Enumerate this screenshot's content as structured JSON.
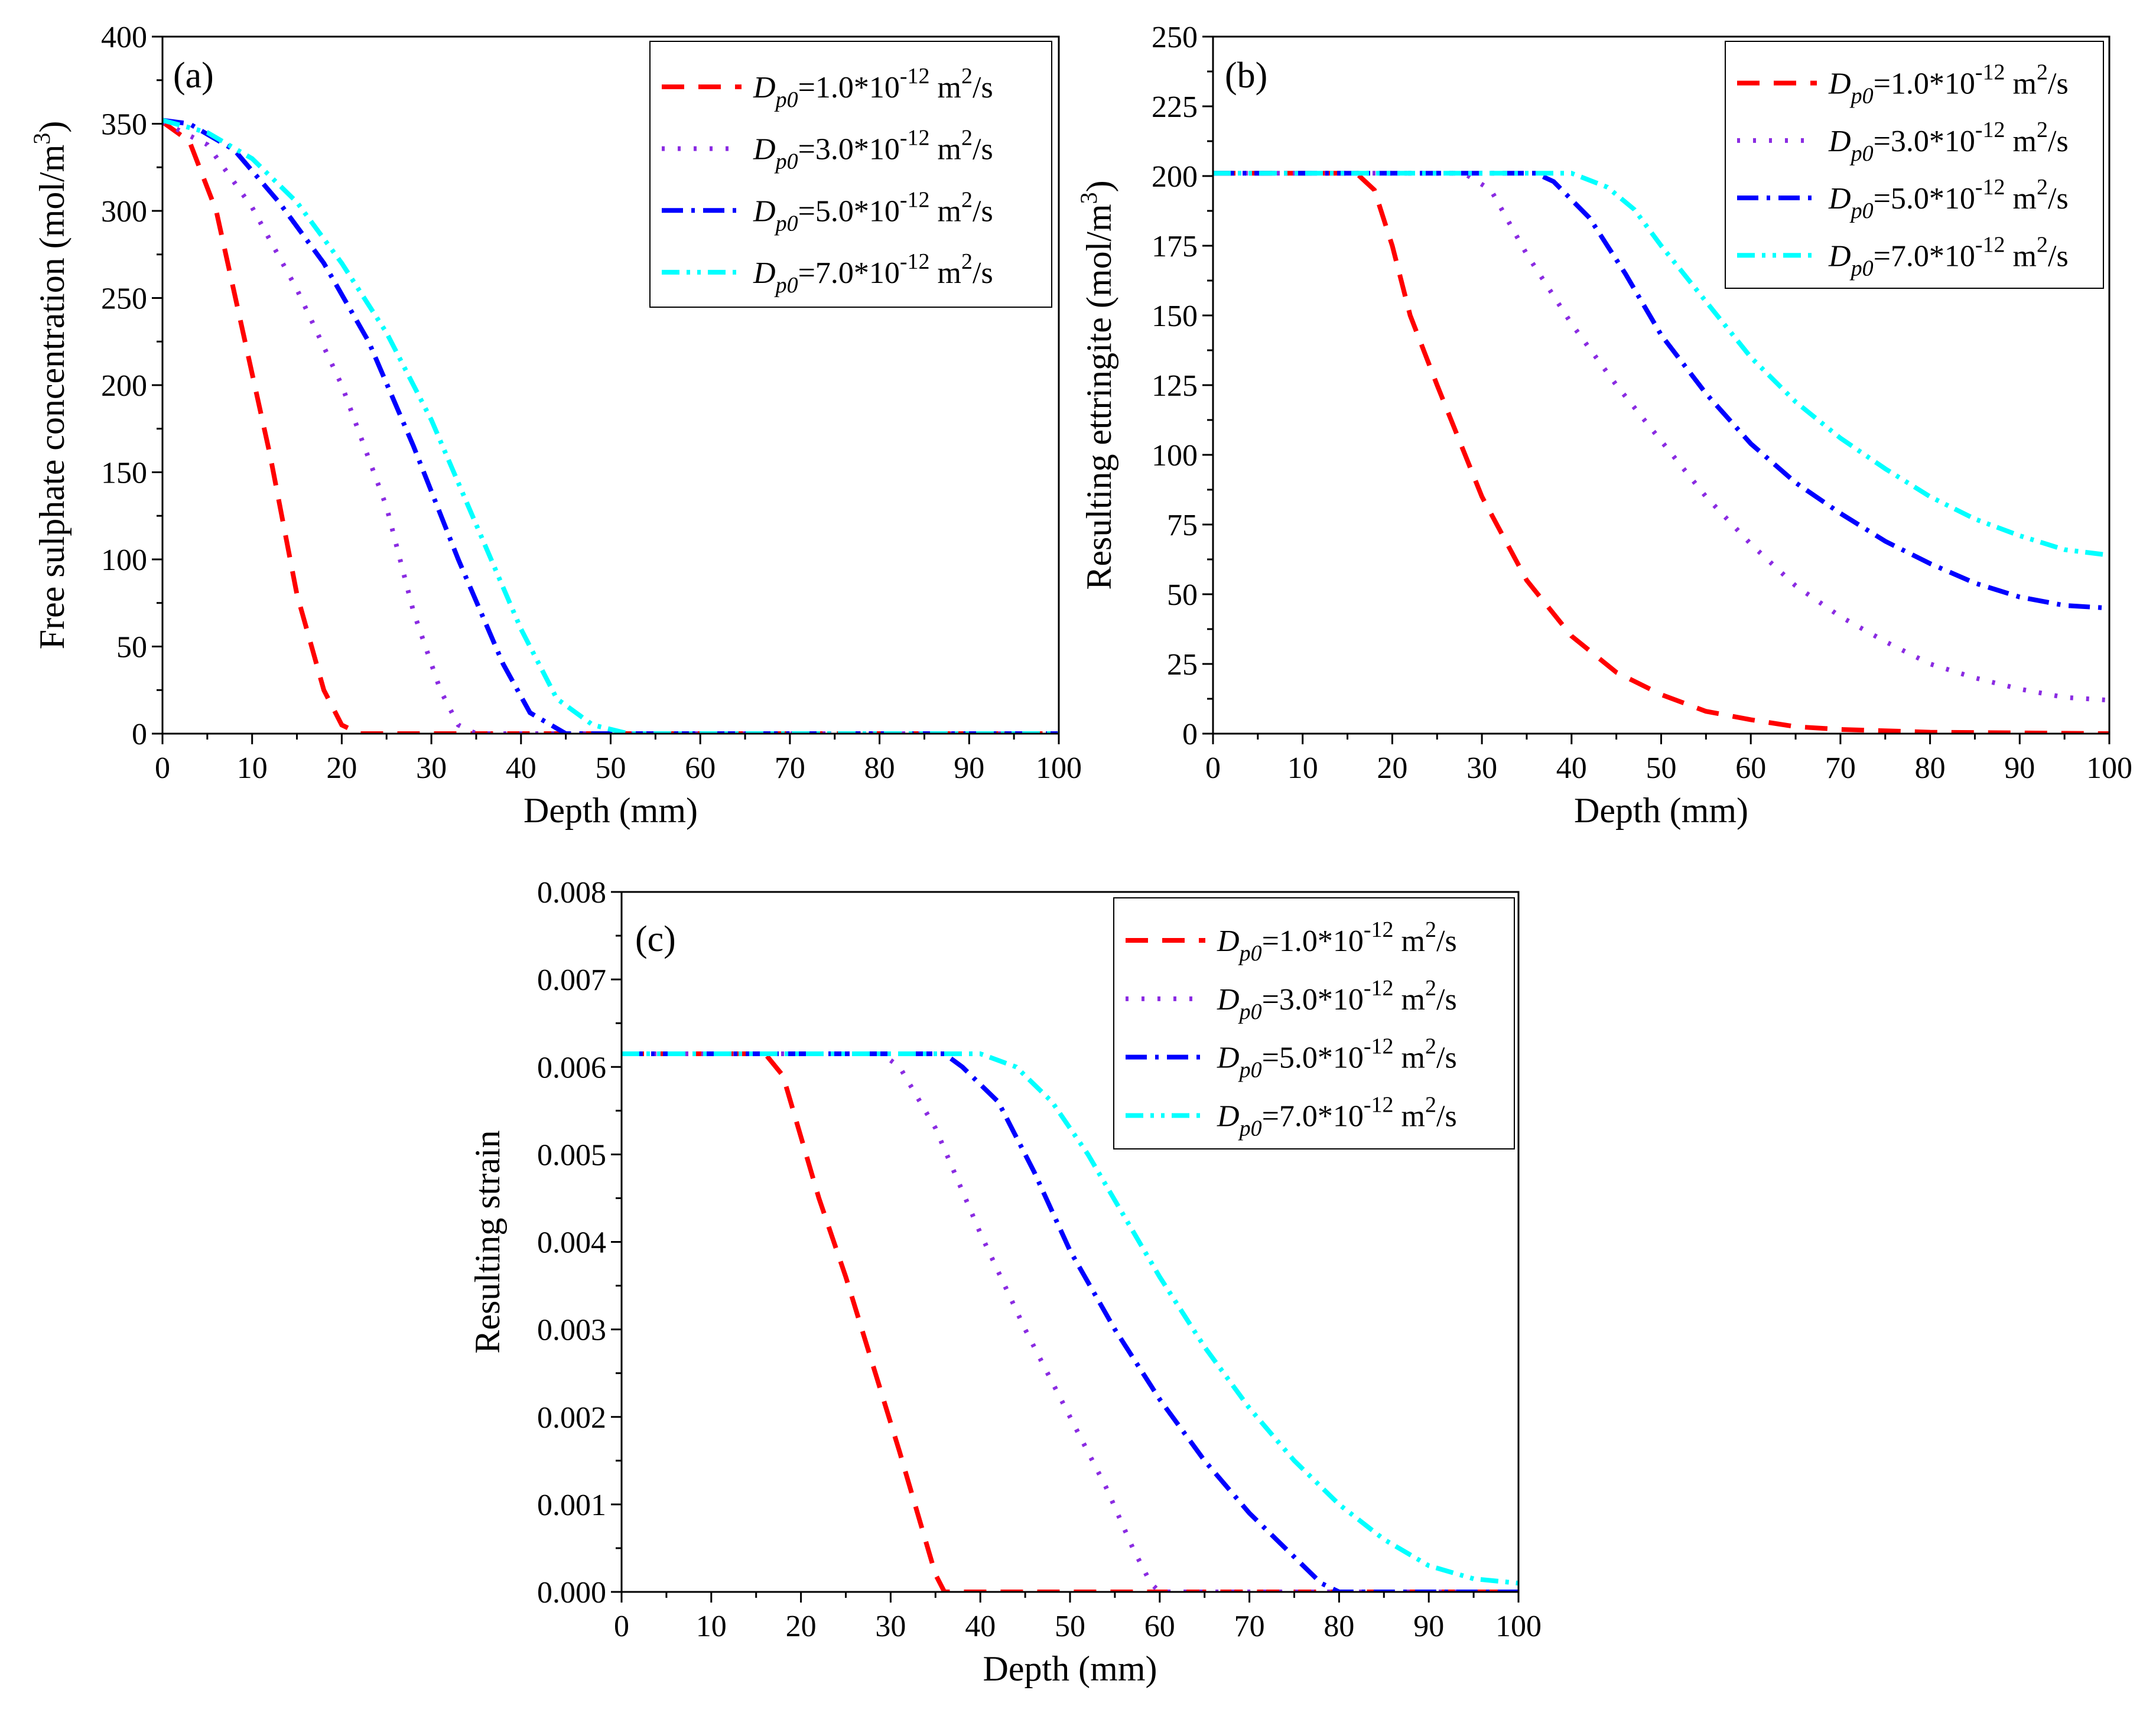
{
  "chart_data": [
    {
      "id": "a",
      "type": "line",
      "panel_label": "(a)",
      "xlabel": "Depth (mm)",
      "ylabel_main": "Free sulphate concentration (mol/m",
      "ylabel_sup": "3",
      "ylabel_tail": ")",
      "xlim": [
        0,
        100
      ],
      "ylim": [
        0,
        400
      ],
      "xticks": [
        0,
        10,
        20,
        30,
        40,
        50,
        60,
        70,
        80,
        90,
        100
      ],
      "yticks": [
        0,
        50,
        100,
        150,
        200,
        250,
        300,
        350,
        400
      ],
      "legend_position": "top-right",
      "series": [
        {
          "name": "Dp0=1.0*10^-12 m2/s",
          "values": [
            [
              0,
              351
            ],
            [
              3,
              340
            ],
            [
              6,
              300
            ],
            [
              9,
              230
            ],
            [
              12,
              160
            ],
            [
              15,
              80
            ],
            [
              18,
              25
            ],
            [
              20,
              5
            ],
            [
              22,
              0
            ],
            [
              100,
              0
            ]
          ]
        },
        {
          "name": "Dp0=3.0*10^-12 m2/s",
          "values": [
            [
              0,
              351
            ],
            [
              5,
              338
            ],
            [
              10,
              302
            ],
            [
              15,
              255
            ],
            [
              20,
              200
            ],
            [
              25,
              130
            ],
            [
              28,
              70
            ],
            [
              31,
              25
            ],
            [
              33,
              5
            ],
            [
              35,
              0
            ],
            [
              100,
              0
            ]
          ]
        },
        {
          "name": "Dp0=5.0*10^-12 m2/s",
          "values": [
            [
              0,
              352
            ],
            [
              3,
              350
            ],
            [
              8,
              335
            ],
            [
              13,
              305
            ],
            [
              18,
              270
            ],
            [
              23,
              225
            ],
            [
              28,
              165
            ],
            [
              33,
              100
            ],
            [
              38,
              40
            ],
            [
              41,
              12
            ],
            [
              45,
              0
            ],
            [
              100,
              0
            ]
          ]
        },
        {
          "name": "Dp0=7.0*10^-12 m2/s",
          "values": [
            [
              0,
              352
            ],
            [
              5,
              345
            ],
            [
              10,
              330
            ],
            [
              15,
              305
            ],
            [
              20,
              270
            ],
            [
              25,
              230
            ],
            [
              30,
              180
            ],
            [
              35,
              120
            ],
            [
              40,
              60
            ],
            [
              44,
              20
            ],
            [
              48,
              5
            ],
            [
              52,
              0
            ],
            [
              100,
              0
            ]
          ]
        }
      ]
    },
    {
      "id": "b",
      "type": "line",
      "panel_label": "(b)",
      "xlabel": "Depth (mm)",
      "ylabel_main": "Resulting ettringite (mol/m",
      "ylabel_sup": "3",
      "ylabel_tail": ")",
      "xlim": [
        0,
        100
      ],
      "ylim": [
        0,
        250
      ],
      "xticks": [
        0,
        10,
        20,
        30,
        40,
        50,
        60,
        70,
        80,
        90,
        100
      ],
      "yticks": [
        0,
        25,
        50,
        75,
        100,
        125,
        150,
        175,
        200,
        225,
        250
      ],
      "legend_position": "top-right",
      "series": [
        {
          "name": "Dp0=1.0*10^-12 m2/s",
          "values": [
            [
              0,
              201
            ],
            [
              16,
              201
            ],
            [
              18,
              195
            ],
            [
              20,
              175
            ],
            [
              22,
              150
            ],
            [
              25,
              125
            ],
            [
              30,
              85
            ],
            [
              35,
              55
            ],
            [
              40,
              35
            ],
            [
              45,
              22
            ],
            [
              50,
              14
            ],
            [
              55,
              8
            ],
            [
              60,
              5
            ],
            [
              65,
              2.5
            ],
            [
              70,
              1.5
            ],
            [
              80,
              0.5
            ],
            [
              100,
              0
            ]
          ]
        },
        {
          "name": "Dp0=3.0*10^-12 m2/s",
          "values": [
            [
              0,
              201
            ],
            [
              28,
              201
            ],
            [
              31,
              195
            ],
            [
              35,
              172
            ],
            [
              40,
              147
            ],
            [
              45,
              125
            ],
            [
              50,
              105
            ],
            [
              55,
              85
            ],
            [
              60,
              68
            ],
            [
              65,
              53
            ],
            [
              70,
              42
            ],
            [
              75,
              33
            ],
            [
              80,
              25
            ],
            [
              85,
              20
            ],
            [
              90,
              16
            ],
            [
              95,
              13
            ],
            [
              100,
              12
            ]
          ]
        },
        {
          "name": "Dp0=5.0*10^-12 m2/s",
          "values": [
            [
              0,
              201
            ],
            [
              36,
              201
            ],
            [
              38,
              198
            ],
            [
              42,
              185
            ],
            [
              46,
              165
            ],
            [
              50,
              143
            ],
            [
              55,
              122
            ],
            [
              60,
              104
            ],
            [
              65,
              90
            ],
            [
              70,
              79
            ],
            [
              75,
              69
            ],
            [
              80,
              61
            ],
            [
              85,
              54
            ],
            [
              90,
              49
            ],
            [
              95,
              46
            ],
            [
              100,
              45
            ]
          ]
        },
        {
          "name": "Dp0=7.0*10^-12 m2/s",
          "values": [
            [
              0,
              201
            ],
            [
              40,
              201
            ],
            [
              44,
              196
            ],
            [
              47,
              188
            ],
            [
              50,
              175
            ],
            [
              55,
              155
            ],
            [
              60,
              135
            ],
            [
              65,
              119
            ],
            [
              70,
              106
            ],
            [
              75,
              95
            ],
            [
              80,
              85
            ],
            [
              85,
              77
            ],
            [
              90,
              71
            ],
            [
              95,
              66
            ],
            [
              100,
              64
            ]
          ]
        }
      ]
    },
    {
      "id": "c",
      "type": "line",
      "panel_label": "(c)",
      "xlabel": "Depth (mm)",
      "ylabel_main": "Resulting strain",
      "ylabel_sup": "",
      "ylabel_tail": "",
      "xlim": [
        0,
        100
      ],
      "ylim": [
        0,
        0.008
      ],
      "xticks": [
        0,
        10,
        20,
        30,
        40,
        50,
        60,
        70,
        80,
        90,
        100
      ],
      "yticks": [
        0,
        0.001,
        0.002,
        0.003,
        0.004,
        0.005,
        0.006,
        0.007,
        0.008
      ],
      "ytick_labels": [
        "0.000",
        "0.001",
        "0.002",
        "0.003",
        "0.004",
        "0.005",
        "0.006",
        "0.007",
        "0.008"
      ],
      "legend_position": "top-right",
      "series": [
        {
          "name": "Dp0=1.0*10^-12 m2/s",
          "values": [
            [
              0,
              0.00615
            ],
            [
              16,
              0.00615
            ],
            [
              18,
              0.0059
            ],
            [
              20,
              0.0052
            ],
            [
              22,
              0.0045
            ],
            [
              25,
              0.0036
            ],
            [
              28,
              0.0026
            ],
            [
              31,
              0.0016
            ],
            [
              33,
              0.0009
            ],
            [
              35,
              0.0002
            ],
            [
              36,
              0
            ],
            [
              100,
              0
            ]
          ]
        },
        {
          "name": "Dp0=3.0*10^-12 m2/s",
          "values": [
            [
              0,
              0.00615
            ],
            [
              29,
              0.00615
            ],
            [
              31,
              0.006
            ],
            [
              35,
              0.0053
            ],
            [
              40,
              0.0041
            ],
            [
              45,
              0.003
            ],
            [
              50,
              0.002
            ],
            [
              54,
              0.0012
            ],
            [
              57,
              0.0005
            ],
            [
              59,
              0.0001
            ],
            [
              60,
              0
            ],
            [
              100,
              0
            ]
          ]
        },
        {
          "name": "Dp0=5.0*10^-12 m2/s",
          "values": [
            [
              0,
              0.00615
            ],
            [
              36,
              0.00615
            ],
            [
              38,
              0.006
            ],
            [
              42,
              0.0056
            ],
            [
              46,
              0.0048
            ],
            [
              50,
              0.0039
            ],
            [
              55,
              0.003
            ],
            [
              60,
              0.0022
            ],
            [
              65,
              0.0015
            ],
            [
              70,
              0.0009
            ],
            [
              75,
              0.0004
            ],
            [
              78,
              0.0001
            ],
            [
              80,
              0
            ],
            [
              100,
              0
            ]
          ]
        },
        {
          "name": "Dp0=7.0*10^-12 m2/s",
          "values": [
            [
              0,
              0.00615
            ],
            [
              40,
              0.00615
            ],
            [
              44,
              0.006
            ],
            [
              48,
              0.0056
            ],
            [
              52,
              0.005
            ],
            [
              56,
              0.0043
            ],
            [
              60,
              0.0036
            ],
            [
              65,
              0.0028
            ],
            [
              70,
              0.0021
            ],
            [
              75,
              0.0015
            ],
            [
              80,
              0.001
            ],
            [
              85,
              0.0006
            ],
            [
              90,
              0.0003
            ],
            [
              95,
              0.00015
            ],
            [
              100,
              0.0001
            ]
          ]
        }
      ]
    }
  ],
  "legend_entries": [
    {
      "symbol": "D",
      "subscript": "p0",
      "value_text": "=1.0*10",
      "exponent": "-12",
      "unit_main": " m",
      "unit_sup": "2",
      "unit_tail": "/s",
      "color": "#ff0000",
      "dash": "dash"
    },
    {
      "symbol": "D",
      "subscript": "p0",
      "value_text": "=3.0*10",
      "exponent": "-12",
      "unit_main": " m",
      "unit_sup": "2",
      "unit_tail": "/s",
      "color": "#8a2be2",
      "dash": "dot"
    },
    {
      "symbol": "D",
      "subscript": "p0",
      "value_text": "=5.0*10",
      "exponent": "-12",
      "unit_main": " m",
      "unit_sup": "2",
      "unit_tail": "/s",
      "color": "#0000ff",
      "dash": "dashdot"
    },
    {
      "symbol": "D",
      "subscript": "p0",
      "value_text": "=7.0*10",
      "exponent": "-12",
      "unit_main": " m",
      "unit_sup": "2",
      "unit_tail": "/s",
      "color": "#00ffff",
      "dash": "dashdotdot"
    }
  ]
}
